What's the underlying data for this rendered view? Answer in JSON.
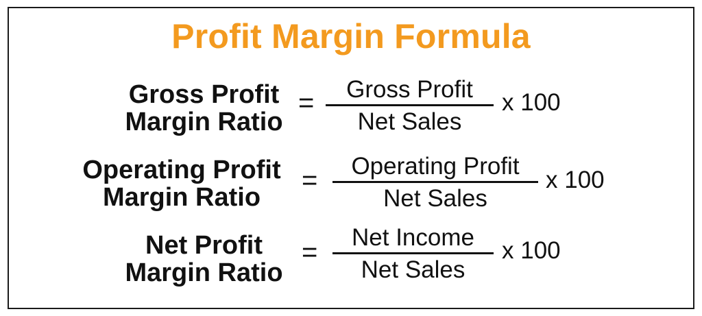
{
  "title": "Profit Margin Formula",
  "colors": {
    "title": "#f39a1f",
    "text": "#111111",
    "border": "#1a1a1a"
  },
  "formulas": [
    {
      "lhs_line1": "Gross Profit",
      "lhs_line2": "Margin Ratio",
      "equals": "=",
      "numerator": "Gross Profit",
      "denominator": "Net Sales",
      "multiplier": "x 100"
    },
    {
      "lhs_line1": "Operating Profit",
      "lhs_line2": "Margin Ratio",
      "equals": "=",
      "numerator": "Operating Profit",
      "denominator": "Net Sales",
      "multiplier": "x 100"
    },
    {
      "lhs_line1": "Net Profit",
      "lhs_line2": "Margin Ratio",
      "equals": "=",
      "numerator": "Net Income",
      "denominator": "Net Sales",
      "multiplier": "x 100"
    }
  ]
}
